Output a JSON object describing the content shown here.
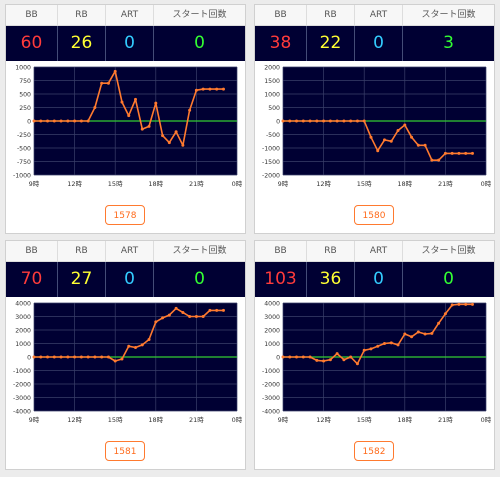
{
  "colors": {
    "bb": "#ff3b3b",
    "rb": "#ffff33",
    "art": "#33ccff",
    "start": "#33ff33",
    "line": "#ff7a2f",
    "zero": "#33cc33",
    "plot_bg": "#000033"
  },
  "headers": {
    "bb": "BB",
    "rb": "RB",
    "art": "ART",
    "start": "スタート回数"
  },
  "cards": [
    {
      "bb": "60",
      "rb": "26",
      "art": "0",
      "start": "0",
      "button": "1578"
    },
    {
      "bb": "38",
      "rb": "22",
      "art": "0",
      "start": "3",
      "button": "1580"
    },
    {
      "bb": "70",
      "rb": "27",
      "art": "0",
      "start": "0",
      "button": "1581"
    },
    {
      "bb": "103",
      "rb": "36",
      "art": "0",
      "start": "0",
      "button": "1582"
    }
  ],
  "chart_data": [
    {
      "type": "line",
      "title": "",
      "x_ticks": [
        "9時",
        "12時",
        "15時",
        "18時",
        "21時",
        "0時"
      ],
      "xlim": [
        9,
        24
      ],
      "ylim": [
        -1000,
        1000
      ],
      "y_ticks": [
        "1000",
        "750",
        "500",
        "250",
        "0",
        "-250",
        "-500",
        "-750",
        "-1000"
      ],
      "grid": true,
      "series": [
        {
          "x": [
            9.0,
            9.5,
            10.0,
            10.5,
            11.0,
            11.5,
            12.0,
            12.5,
            13.0,
            13.5,
            14.0,
            14.5,
            15.0,
            15.5,
            16.0,
            16.5,
            17.0,
            17.5,
            18.0,
            18.5,
            19.0,
            19.5,
            20.0,
            20.5,
            21.0,
            21.5,
            22.0,
            22.5,
            23.0
          ],
          "y": [
            0,
            0,
            0,
            0,
            0,
            0,
            0,
            0,
            0,
            250,
            700,
            700,
            920,
            350,
            100,
            400,
            -150,
            -100,
            330,
            -270,
            -400,
            -200,
            -450,
            200,
            570,
            590,
            590,
            590,
            590
          ]
        }
      ]
    },
    {
      "type": "line",
      "title": "",
      "x_ticks": [
        "9時",
        "12時",
        "15時",
        "18時",
        "21時",
        "0時"
      ],
      "xlim": [
        9,
        24
      ],
      "ylim": [
        -2000,
        2000
      ],
      "y_ticks": [
        "2000",
        "1500",
        "1000",
        "500",
        "0",
        "-500",
        "-1000",
        "-1500",
        "-2000"
      ],
      "grid": true,
      "series": [
        {
          "x": [
            9.0,
            9.5,
            10.0,
            10.5,
            11.0,
            11.5,
            12.0,
            12.5,
            13.0,
            13.5,
            14.0,
            14.5,
            15.0,
            15.5,
            16.0,
            16.5,
            17.0,
            17.5,
            18.0,
            18.5,
            19.0,
            19.5,
            20.0,
            20.5,
            21.0,
            21.5,
            22.0,
            22.5,
            23.0
          ],
          "y": [
            0,
            0,
            0,
            0,
            0,
            0,
            0,
            0,
            0,
            0,
            0,
            0,
            0,
            -600,
            -1100,
            -700,
            -750,
            -350,
            -150,
            -600,
            -900,
            -900,
            -1450,
            -1450,
            -1200,
            -1200,
            -1200,
            -1200,
            -1200
          ]
        }
      ]
    },
    {
      "type": "line",
      "title": "",
      "x_ticks": [
        "9時",
        "12時",
        "15時",
        "18時",
        "21時",
        "0時"
      ],
      "xlim": [
        9,
        24
      ],
      "ylim": [
        -4000,
        4000
      ],
      "y_ticks": [
        "4000",
        "3000",
        "2000",
        "1000",
        "0",
        "-1000",
        "-2000",
        "-3000",
        "-4000"
      ],
      "grid": true,
      "series": [
        {
          "x": [
            9.0,
            9.5,
            10.0,
            10.5,
            11.0,
            11.5,
            12.0,
            12.5,
            13.0,
            13.5,
            14.0,
            14.5,
            15.0,
            15.5,
            16.0,
            16.5,
            17.0,
            17.5,
            18.0,
            18.5,
            19.0,
            19.5,
            20.0,
            20.5,
            21.0,
            21.5,
            22.0,
            22.5,
            23.0
          ],
          "y": [
            0,
            0,
            0,
            0,
            0,
            0,
            0,
            0,
            0,
            0,
            0,
            0,
            -300,
            -150,
            800,
            700,
            900,
            1300,
            2600,
            2900,
            3100,
            3600,
            3300,
            3000,
            3000,
            3000,
            3450,
            3450,
            3450
          ]
        }
      ]
    },
    {
      "type": "line",
      "title": "",
      "x_ticks": [
        "9時",
        "12時",
        "15時",
        "18時",
        "21時",
        "0時"
      ],
      "xlim": [
        9,
        24
      ],
      "ylim": [
        -4000,
        4000
      ],
      "y_ticks": [
        "4000",
        "3000",
        "2000",
        "1000",
        "0",
        "-1000",
        "-2000",
        "-3000",
        "-4000"
      ],
      "grid": true,
      "series": [
        {
          "x": [
            9.0,
            9.5,
            10.0,
            10.5,
            11.0,
            11.5,
            12.0,
            12.5,
            13.0,
            13.5,
            14.0,
            14.5,
            15.0,
            15.5,
            16.0,
            16.5,
            17.0,
            17.5,
            18.0,
            18.5,
            19.0,
            19.5,
            20.0,
            20.5,
            21.0,
            21.5,
            22.0,
            22.5,
            23.0
          ],
          "y": [
            0,
            0,
            0,
            0,
            0,
            -250,
            -300,
            -200,
            250,
            -200,
            0,
            -500,
            500,
            600,
            800,
            1000,
            1050,
            900,
            1700,
            1500,
            1850,
            1700,
            1750,
            2500,
            3200,
            3850,
            3900,
            3900,
            3900
          ]
        }
      ]
    }
  ]
}
